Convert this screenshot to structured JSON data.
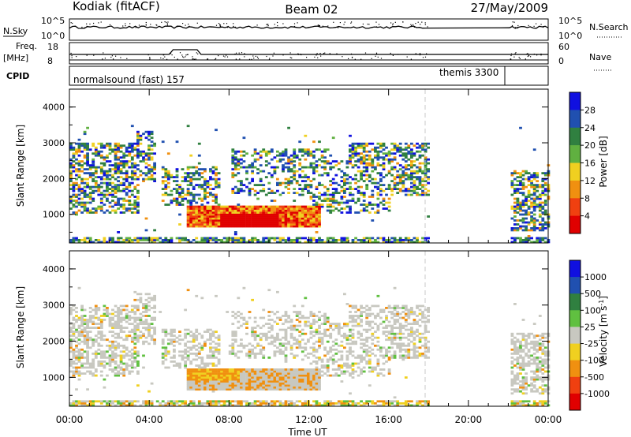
{
  "header": {
    "station": "Kodiak (fitACF)",
    "beam": "Beam 02",
    "date": "27/May/2009"
  },
  "status_panels": {
    "nsky_label": "N.Sky",
    "nsky_ticks": [
      "10^5",
      "10^0"
    ],
    "nsearch_label": "N.Search",
    "nsearch_ticks": [
      "10^5",
      "10^0"
    ],
    "freq_label_1": "Freq.",
    "freq_label_2": "[MHz]",
    "freq_ticks": [
      "18",
      "8"
    ],
    "nave_label": "Nave",
    "nave_ticks": [
      "60",
      "0"
    ],
    "cpid_label": "CPID",
    "cpid_1": "normalsound (fast) 157",
    "cpid_2": "themis 3300"
  },
  "time_axis": {
    "label": "Time UT",
    "ticks": [
      "00:00",
      "04:00",
      "08:00",
      "12:00",
      "16:00",
      "20:00",
      "00:00"
    ],
    "tick_hours": [
      0,
      4,
      8,
      12,
      16,
      20,
      24
    ]
  },
  "colors": {
    "power": [
      "#1010e0",
      "#2050b0",
      "#308040",
      "#60b040",
      "#f0d020",
      "#f09010",
      "#f04010",
      "#e00000"
    ],
    "velocity": [
      "#1010e0",
      "#2050b0",
      "#308040",
      "#60c040",
      "#c8c8c0",
      "#f0d020",
      "#f09010",
      "#f04010",
      "#e00000"
    ]
  },
  "chart_data": [
    {
      "type": "heatmap",
      "panel": "power",
      "ylabel": "Slant Range [km]",
      "ylim": [
        200,
        4500
      ],
      "yticks": [
        "4000",
        "3000",
        "2000",
        "1000"
      ],
      "xlim_hours": [
        0,
        24
      ],
      "colorbar_label": "Power [dB]",
      "colorbar_ticks": [
        "28",
        "24",
        "20",
        "16",
        "12",
        "8",
        "4"
      ],
      "colorbar_range": [
        0,
        32
      ],
      "data_gap_hours": [
        18,
        22
      ]
    },
    {
      "type": "heatmap",
      "panel": "velocity",
      "ylabel": "Slant Range [km]",
      "ylim": [
        200,
        4500
      ],
      "yticks": [
        "4000",
        "3000",
        "2000",
        "1000"
      ],
      "xlim_hours": [
        0,
        24
      ],
      "colorbar_label": "Velocity [m s^-1]",
      "colorbar_ticks": [
        "1000",
        "500",
        "100",
        "25",
        "-25",
        "-100",
        "-500",
        "-1000"
      ],
      "data_gap_hours": [
        18,
        22
      ]
    }
  ]
}
